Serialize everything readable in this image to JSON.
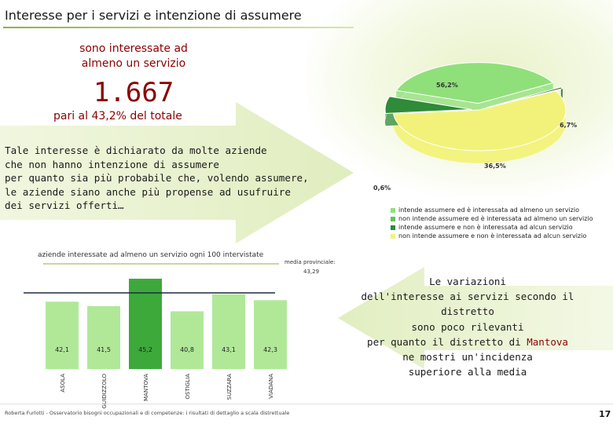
{
  "slide": {
    "title": "Interesse per i servizi e intenzione di assumere",
    "headline_line1": "sono interessate ad",
    "headline_line2": "almeno un servizio",
    "big_number": "1.667",
    "share_text": "pari al 43,2% del totale",
    "paragraph_lines": [
      "Tale interesse è dichiarato da molte aziende",
      "che non hanno intenzione di assumere",
      "per quanto sia più probabile che, volendo assumere,",
      "le aziende siano anche più propense ad usufruire",
      "dei servizi offerti…"
    ],
    "variation_lines": [
      "Le variazioni",
      "dell'interesse ai servizi secondo il distretto",
      "sono poco rilevanti",
      "per quanto il distretto di ",
      "Mantova",
      "ne mostri un'incidenza",
      "superiore alla media"
    ],
    "footer": "Roberta Furlotti - Osservatorio bisogni occupazionali e di competenze: i risultati di dettaglio a scala distrettuale",
    "page_number": "17"
  },
  "colors": {
    "accent_dark_red": "#8b0000",
    "yellow": "#f2f27a",
    "light_green": "#8fe07a",
    "dark_green": "#2f8a3a",
    "bar_green": "#a7e68d",
    "highlight_bar": "#3da93a"
  },
  "chart_data": [
    {
      "type": "pie",
      "slices": [
        {
          "label": "56,2%",
          "value": 56.2,
          "color": "#f2f27a"
        },
        {
          "label": "6,7%",
          "value": 6.7,
          "color": "#2f8a3a"
        },
        {
          "label": "36,5%",
          "value": 36.5,
          "color": "#8fe07a"
        },
        {
          "label": "0,6%",
          "value": 0.6,
          "color": "#1f5c2a"
        }
      ],
      "legend": [
        {
          "text": "intende assumere ed è interessata ad almeno un servizio",
          "color": "#8fe07a"
        },
        {
          "text": "non intende assumere ed è interessata ad almeno un servizio",
          "color": "#5fc35a"
        },
        {
          "text": "intende assumere e non è interessata ad alcun servizio",
          "color": "#2f8a3a"
        },
        {
          "text": "non intende assumere e non è interessata ad alcun servizio",
          "color": "#f2f27a"
        }
      ],
      "legend_position": "bottom-right"
    },
    {
      "type": "bar",
      "title": "aziende interessate ad almeno un servizio ogni 100 intervistate",
      "categories": [
        "ASOLA",
        "GUIDIZZOLO",
        "MANTOVA",
        "OSTIGLIA",
        "SUZZARA",
        "VIADANA"
      ],
      "values": [
        42.1,
        41.5,
        45.2,
        40.8,
        43.1,
        42.3
      ],
      "value_labels": [
        "42,1",
        "41,5",
        "45,2",
        "40,8",
        "43,1",
        "42,3"
      ],
      "highlight": "MANTOVA",
      "reference_line": {
        "label": "media provinciale:",
        "value_label": "43,29",
        "value": 43.29
      },
      "ylim": [
        33,
        47
      ]
    }
  ]
}
